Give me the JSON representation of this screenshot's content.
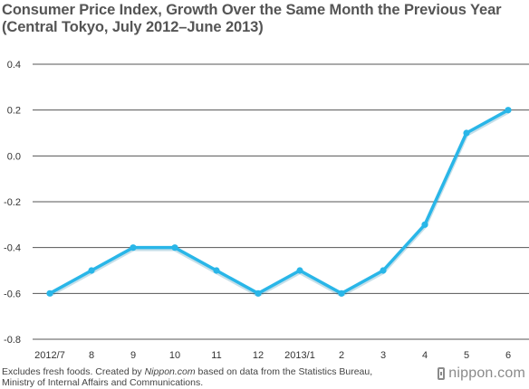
{
  "title_line1": "Consumer Price Index, Growth Over the Same Month the Previous Year",
  "title_line2": "(Central Tokyo, July 2012–June 2013)",
  "footnote": {
    "prefix": "Excludes fresh foods. Created by ",
    "source": "Nippon.com",
    "suffix": " based on data from the Statistics Bureau, Ministry of Internal Affairs and Communications."
  },
  "logo": "nippon.com",
  "colors": {
    "line": "#29b6e8",
    "grid": "#555555"
  },
  "chart_data": {
    "type": "line",
    "title": "Consumer Price Index, Growth Over the Same Month the Previous Year (Central Tokyo, July 2012–June 2013)",
    "categories": [
      "2012/7",
      "8",
      "9",
      "10",
      "11",
      "12",
      "2013/1",
      "2",
      "3",
      "4",
      "5",
      "6"
    ],
    "series": [
      {
        "values": [
          -0.6,
          -0.5,
          -0.4,
          -0.4,
          -0.5,
          -0.6,
          -0.5,
          -0.6,
          -0.5,
          -0.3,
          0.1,
          0.2
        ]
      }
    ],
    "yticks": [
      "0.4",
      "0.2",
      "0.0",
      "-0.2",
      "-0.4",
      "-0.6",
      "-0.8"
    ],
    "ylim": [
      -0.8,
      0.4
    ],
    "grid": true,
    "legend": "none"
  }
}
